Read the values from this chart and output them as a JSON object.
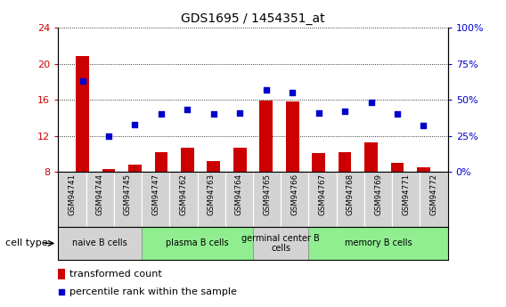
{
  "title": "GDS1695 / 1454351_at",
  "samples": [
    "GSM94741",
    "GSM94744",
    "GSM94745",
    "GSM94747",
    "GSM94762",
    "GSM94763",
    "GSM94764",
    "GSM94765",
    "GSM94766",
    "GSM94767",
    "GSM94768",
    "GSM94769",
    "GSM94771",
    "GSM94772"
  ],
  "transformed_count": [
    20.8,
    8.3,
    8.8,
    10.2,
    10.7,
    9.2,
    10.7,
    15.9,
    15.8,
    10.1,
    10.2,
    11.3,
    9.0,
    8.5
  ],
  "percentile_rank": [
    63,
    25,
    33,
    40,
    43,
    40,
    41,
    57,
    55,
    41,
    42,
    48,
    40,
    32
  ],
  "ylim_left": [
    8,
    24
  ],
  "ylim_right": [
    0,
    100
  ],
  "yticks_left": [
    8,
    12,
    16,
    20,
    24
  ],
  "yticks_right": [
    0,
    25,
    50,
    75,
    100
  ],
  "ytick_labels_right": [
    "0%",
    "25%",
    "50%",
    "75%",
    "100%"
  ],
  "bar_color": "#cc0000",
  "dot_color": "#0000cc",
  "cell_type_groups": [
    {
      "label": "naive B cells",
      "start": 0,
      "end": 2,
      "color": "#d3d3d3"
    },
    {
      "label": "plasma B cells",
      "start": 3,
      "end": 6,
      "color": "#90ee90"
    },
    {
      "label": "germinal center B\ncells",
      "start": 7,
      "end": 8,
      "color": "#d3d3d3"
    },
    {
      "label": "memory B cells",
      "start": 9,
      "end": 13,
      "color": "#90ee90"
    }
  ],
  "sample_box_color": "#d3d3d3",
  "legend_bar_label": "transformed count",
  "legend_dot_label": "percentile rank within the sample",
  "left_tick_color": "#cc0000",
  "right_tick_color": "#0000cc"
}
